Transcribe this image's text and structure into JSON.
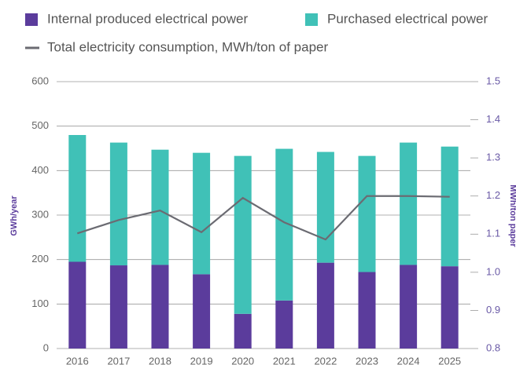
{
  "chart_data": {
    "type": "bar",
    "categories": [
      "2016",
      "2017",
      "2018",
      "2019",
      "2020",
      "2021",
      "2022",
      "2023",
      "2024",
      "2025"
    ],
    "series": [
      {
        "name": "Internal produced electrical power",
        "color": "#5b3c9c",
        "values": [
          195,
          187,
          188,
          167,
          78,
          108,
          193,
          172,
          188,
          185
        ]
      },
      {
        "name": "Purchased electrical power",
        "color": "#40c1b7",
        "values": [
          285,
          276,
          259,
          273,
          355,
          341,
          249,
          261,
          275,
          269
        ]
      },
      {
        "name": "Total electricity consumption, MWh/ton of paper",
        "color": "#6b6b72",
        "type": "line",
        "axis": "y2",
        "values": [
          1.102,
          1.137,
          1.162,
          1.105,
          1.195,
          1.131,
          1.086,
          1.2,
          1.2,
          1.198
        ]
      }
    ],
    "stacked": true,
    "ylabel": "GWh/year",
    "y2label": "MWh/ton paper",
    "ylim": [
      0,
      600
    ],
    "yticks": [
      0,
      100,
      200,
      300,
      400,
      500,
      600
    ],
    "y2lim": [
      0.8,
      1.5
    ],
    "y2ticks": [
      {
        "value": 0.8,
        "label": "0.8"
      },
      {
        "value": 0.9,
        "label": "0.9"
      },
      {
        "value": 1.0,
        "label": "1.0"
      },
      {
        "value": 1.1,
        "label": "1.1"
      },
      {
        "value": 1.2,
        "label": "1.2"
      },
      {
        "value": 1.3,
        "label": "1.3"
      },
      {
        "value": 1.4,
        "label": "1.4"
      },
      {
        "value": 1.5,
        "label": "1.5"
      }
    ],
    "grid": true
  }
}
